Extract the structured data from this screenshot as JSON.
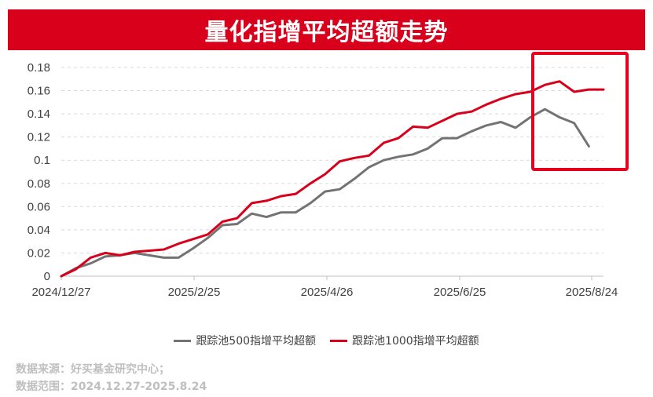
{
  "title": "量化指增平均超额走势",
  "source": {
    "line1": "数据来源：好买基金研究中心；",
    "line2": "数据范围：2024.12.27-2025.8.24"
  },
  "colors": {
    "banner": "#d9001b",
    "series_500": "#737373",
    "series_1000": "#d9001b",
    "highlight_box": "#e8001f"
  },
  "chart_data": {
    "type": "line",
    "x_tick_labels": [
      "2024/12/27",
      "2025/2/25",
      "2025/4/26",
      "2025/6/25",
      "2025/8/24"
    ],
    "y_tick_labels": [
      "0",
      "0.02",
      "0.04",
      "0.06",
      "0.08",
      "0.1",
      "0.12",
      "0.14",
      "0.16",
      "0.18"
    ],
    "ylim": [
      0,
      0.18
    ],
    "grid": "horizontal-dashed",
    "legend_position": "bottom",
    "series": [
      {
        "name": "跟踪池500指增平均超额",
        "values": [
          0,
          0.007,
          0.011,
          0.017,
          0.018,
          0.02,
          0.018,
          0.016,
          0.016,
          0.024,
          0.033,
          0.044,
          0.045,
          0.054,
          0.051,
          0.055,
          0.055,
          0.063,
          0.073,
          0.075,
          0.084,
          0.094,
          0.1,
          0.103,
          0.105,
          0.11,
          0.119,
          0.119,
          0.125,
          0.13,
          0.133,
          0.128,
          0.137,
          0.144,
          0.137,
          0.132,
          0.112
        ]
      },
      {
        "name": "跟踪池1000指增平均超额",
        "values": [
          0,
          0.006,
          0.016,
          0.02,
          0.018,
          0.021,
          0.022,
          0.023,
          0.028,
          0.032,
          0.036,
          0.047,
          0.05,
          0.063,
          0.065,
          0.069,
          0.071,
          0.08,
          0.088,
          0.099,
          0.102,
          0.104,
          0.115,
          0.119,
          0.129,
          0.128,
          0.134,
          0.14,
          0.142,
          0.148,
          0.153,
          0.157,
          0.159,
          0.165,
          0.168,
          0.159,
          0.161,
          0.161
        ]
      }
    ],
    "annotation": "highlight-box-final-period"
  }
}
